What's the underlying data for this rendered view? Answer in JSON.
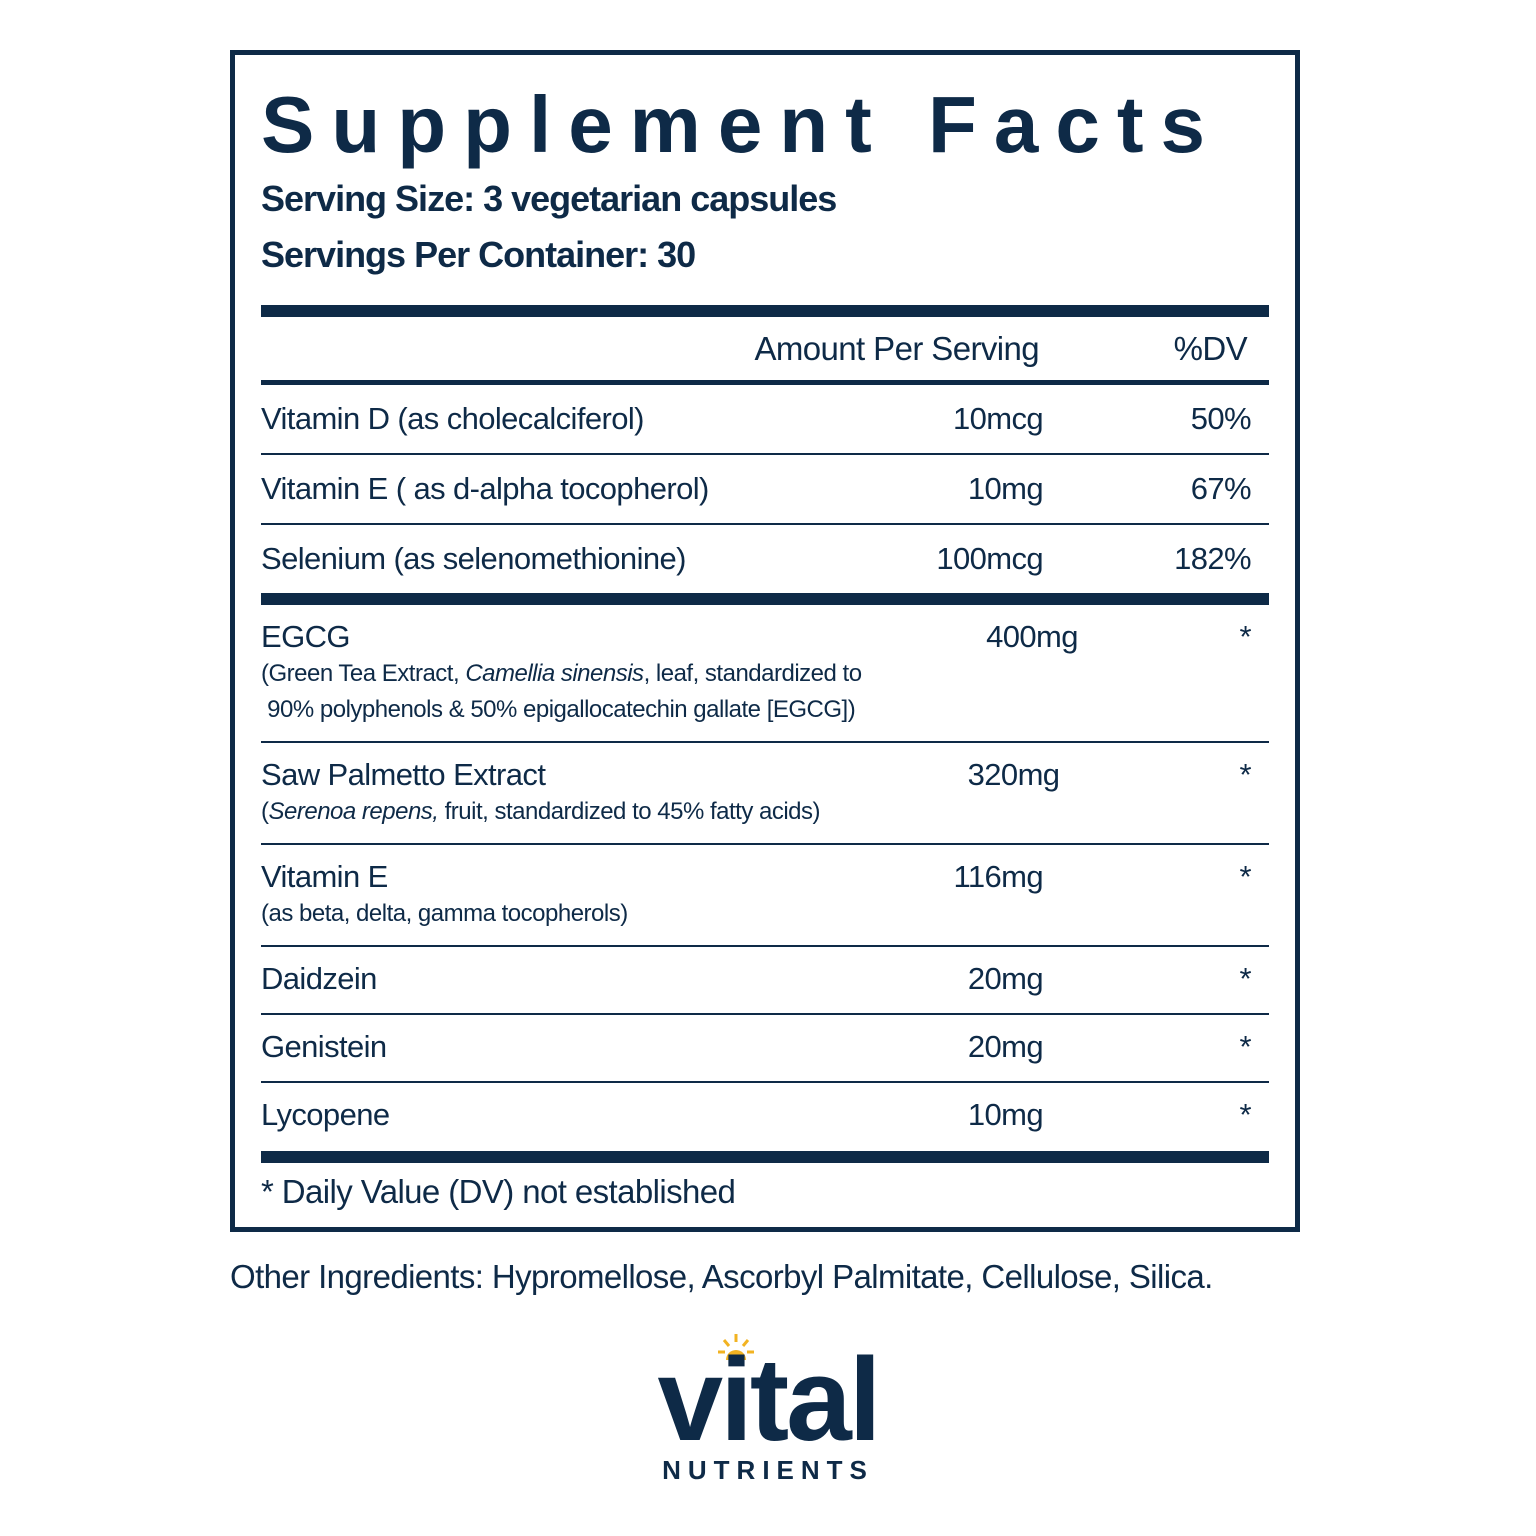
{
  "panel": {
    "title": "Supplement Facts",
    "serving_size": "Serving Size: 3 vegetarian capsules",
    "servings_per_container": "Servings Per Container: 30",
    "header": {
      "amount": "Amount Per Serving",
      "dv": "%DV"
    },
    "groups": [
      [
        {
          "name": "Vitamin D (as cholecalciferol)",
          "amount": "10mcg",
          "dv": "50%"
        },
        {
          "name": "Vitamin E ( as d-alpha tocopherol)",
          "amount": "10mg",
          "dv": "67%"
        },
        {
          "name": "Selenium (as selenomethionine)",
          "amount": "100mcg",
          "dv": "182%"
        }
      ],
      [
        {
          "name": "EGCG",
          "amount": "400mg",
          "dv": "*",
          "detail": [
            [
              {
                "text": "(Green Tea Extract, "
              },
              {
                "text": "Camellia sinensis",
                "italic": true
              },
              {
                "text": ", leaf, standardized to"
              }
            ],
            [
              {
                "text": " 90% polyphenols & 50% epigallocatechin gallate [EGCG])"
              }
            ]
          ]
        },
        {
          "name": "Saw Palmetto Extract",
          "amount": "320mg",
          "dv": "*",
          "detail": [
            [
              {
                "text": "("
              },
              {
                "text": "Serenoa repens,",
                "italic": true
              },
              {
                "text": " fruit, standardized to 45% fatty acids)"
              }
            ]
          ]
        },
        {
          "name": "Vitamin E",
          "amount": "116mg",
          "dv": "*",
          "detail": [
            [
              {
                "text": "(as beta, delta, gamma tocopherols)"
              }
            ]
          ]
        },
        {
          "name": "Daidzein",
          "amount": "20mg",
          "dv": "*"
        },
        {
          "name": "Genistein",
          "amount": "20mg",
          "dv": "*"
        },
        {
          "name": "Lycopene",
          "amount": "10mg",
          "dv": "*"
        }
      ]
    ],
    "footnote": "* Daily Value (DV) not established"
  },
  "other_ingredients": "Other Ingredients: Hypromellose, Ascorbyl Palmitate, Cellulose, Silica.",
  "brand": {
    "name": "vital",
    "tagline": "NUTRIENTS"
  }
}
